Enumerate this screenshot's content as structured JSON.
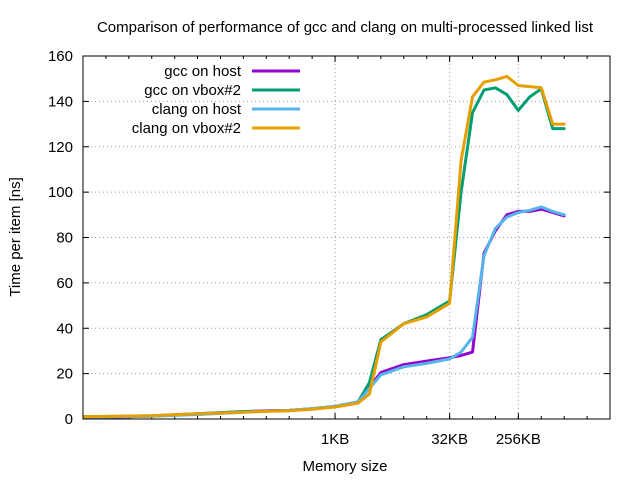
{
  "chart_data": {
    "type": "line",
    "title": "Comparison of performance of gcc and clang on multi-processed linked list",
    "xlabel": "Memory size",
    "ylabel": "Time per item [ns]",
    "x_scale": "log2",
    "xlim_log2": [
      -1,
      22
    ],
    "ylim": [
      0,
      160
    ],
    "y_ticks": [
      0,
      20,
      40,
      60,
      80,
      100,
      120,
      140,
      160
    ],
    "x_ticks": [
      {
        "label": "1KB",
        "log2": 10
      },
      {
        "label": "32KB",
        "log2": 15
      },
      {
        "label": "256KB",
        "log2": 18
      }
    ],
    "grid": true,
    "legend_position": "top-left",
    "series": [
      {
        "name": "gcc on host",
        "color": "#9400d3",
        "x_log2": [
          -1,
          2,
          4,
          6,
          7,
          8,
          9,
          10,
          11,
          12,
          13,
          14,
          15,
          15.5,
          16,
          16.5,
          17,
          17.5,
          18,
          18.5,
          19,
          19.5,
          20
        ],
        "y": [
          0.5,
          1.3,
          2.3,
          3.2,
          3.6,
          3.8,
          4.5,
          5.5,
          7.5,
          20.5,
          24,
          25.5,
          27,
          28,
          29.5,
          73,
          83,
          90,
          91.5,
          91.5,
          92.5,
          91,
          89.5
        ]
      },
      {
        "name": "gcc on vbox#2",
        "color": "#009e73",
        "x_log2": [
          -1,
          2,
          4,
          6,
          7,
          8,
          9,
          10,
          11,
          11.5,
          12,
          13,
          14,
          15,
          15.5,
          16,
          16.5,
          17,
          17.5,
          18,
          18.5,
          19,
          19.5,
          20
        ],
        "y": [
          1,
          1.4,
          2.3,
          3.3,
          3.5,
          3.7,
          4.5,
          5.5,
          7.5,
          16,
          35,
          42,
          46,
          52,
          100,
          135,
          145,
          146,
          143,
          136,
          142,
          145.5,
          128,
          128
        ]
      },
      {
        "name": "clang on host",
        "color": "#56b4e9",
        "x_log2": [
          -1,
          2,
          4,
          6,
          7,
          8,
          9,
          10,
          11,
          12,
          13,
          14,
          15,
          15.5,
          16,
          16.5,
          17,
          17.5,
          18,
          18.5,
          19,
          19.5,
          20
        ],
        "y": [
          0.8,
          1.2,
          2.0,
          3.0,
          3.5,
          3.8,
          4.5,
          5.5,
          7.5,
          19.5,
          23,
          24.5,
          26.5,
          29.5,
          36,
          72,
          84,
          89,
          91,
          92,
          93.5,
          91.5,
          90
        ]
      },
      {
        "name": "clang on vbox#2",
        "color": "#e69f00",
        "x_log2": [
          -1,
          2,
          4,
          6,
          7,
          8,
          9,
          10,
          11,
          11.5,
          12,
          13,
          14,
          15,
          15.5,
          16,
          16.5,
          17,
          17.5,
          18,
          18.5,
          19,
          19.5,
          20
        ],
        "y": [
          1,
          1.4,
          2.3,
          3.0,
          3.4,
          3.6,
          4.3,
          5.3,
          7,
          11,
          34,
          42,
          45,
          51,
          114,
          142,
          148.5,
          149.5,
          151,
          147,
          146.5,
          146,
          130,
          130
        ]
      }
    ]
  }
}
